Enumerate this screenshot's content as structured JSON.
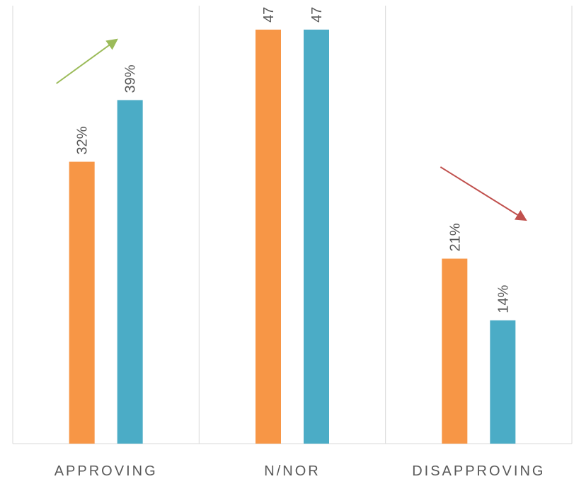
{
  "chart_data": {
    "type": "bar",
    "categories": [
      "APPROVING",
      "N/NOR",
      "DISAPPROVING"
    ],
    "series": [
      {
        "values": [
          32,
          47,
          21
        ],
        "labels": [
          "32%",
          "47",
          "21%"
        ],
        "color": "#F79646"
      },
      {
        "values": [
          39,
          47,
          14
        ],
        "labels": [
          "39%",
          "47",
          "14%"
        ],
        "color": "#4BACC6"
      }
    ],
    "unit": "%",
    "ylim": [
      0,
      50
    ],
    "grid": "vertical category separators",
    "legend": "none",
    "annotations": [
      {
        "type": "arrow",
        "direction": "up",
        "category": "APPROVING",
        "color": "#9BBB59"
      },
      {
        "type": "arrow",
        "direction": "down",
        "category": "DISAPPROVING",
        "color": "#C0504D"
      }
    ]
  }
}
